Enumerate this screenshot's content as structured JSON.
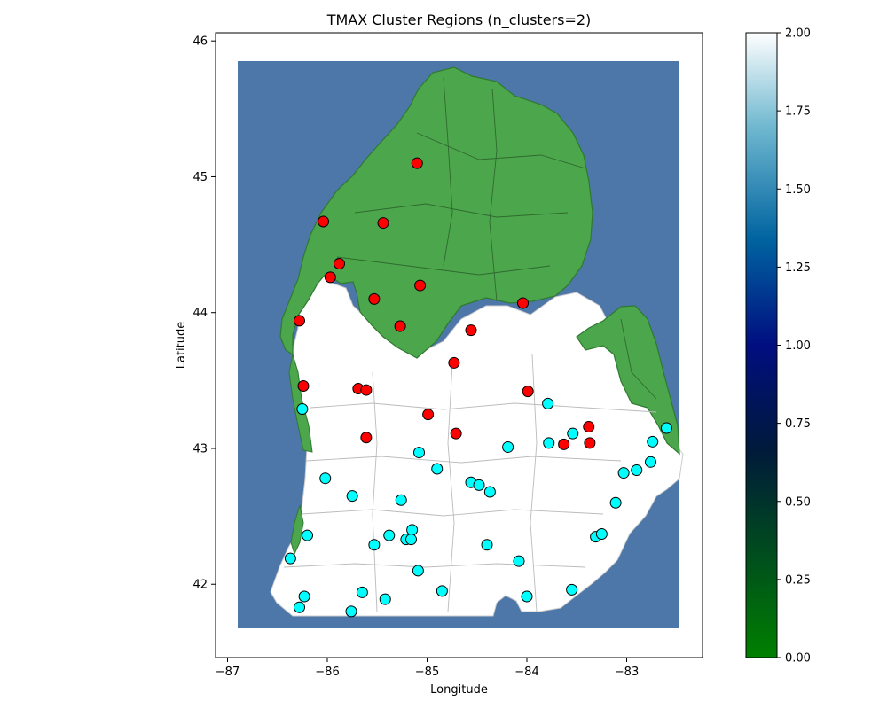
{
  "chart_data": {
    "type": "scatter",
    "title": "TMAX Cluster Regions (n_clusters=2)",
    "xlabel": "Longitude",
    "ylabel": "Latitude",
    "xlim": [
      -87.12,
      -82.24
    ],
    "ylim": [
      41.46,
      46.06
    ],
    "x_ticks": [
      -87,
      -86,
      -85,
      -84,
      -83
    ],
    "x_tick_labels": [
      "−87",
      "−86",
      "−85",
      "−84",
      "−83"
    ],
    "y_ticks": [
      42,
      43,
      44,
      45,
      46
    ],
    "y_tick_labels": [
      "42",
      "43",
      "44",
      "45",
      "46"
    ],
    "grid": false,
    "colors": {
      "water": "#4c77a8",
      "cluster_region_0": "#4ca64c",
      "cluster_region_1": "#ffffff",
      "cluster_0_points": "#ff0000",
      "cluster_1_points": "#00ffff",
      "county_lines": "#bbbbbb"
    },
    "colorbar": {
      "colormap": "ocean",
      "min": 0.0,
      "max": 2.0,
      "ticks": [
        0.0,
        0.25,
        0.5,
        0.75,
        1.0,
        1.25,
        1.5,
        1.75,
        2.0
      ],
      "tick_labels": [
        "0.00",
        "0.25",
        "0.50",
        "0.75",
        "1.00",
        "1.25",
        "1.50",
        "1.75",
        "2.00"
      ]
    },
    "series": [
      {
        "cluster": 0,
        "color": "#ff0000",
        "points": [
          [
            -85.1,
            45.1
          ],
          [
            -86.04,
            44.67
          ],
          [
            -85.44,
            44.66
          ],
          [
            -85.88,
            44.36
          ],
          [
            -85.97,
            44.26
          ],
          [
            -85.07,
            44.2
          ],
          [
            -85.53,
            44.1
          ],
          [
            -86.28,
            43.94
          ],
          [
            -84.04,
            44.07
          ],
          [
            -85.27,
            43.9
          ],
          [
            -84.56,
            43.87
          ],
          [
            -84.73,
            43.63
          ],
          [
            -86.24,
            43.46
          ],
          [
            -85.69,
            43.44
          ],
          [
            -85.61,
            43.43
          ],
          [
            -83.99,
            43.42
          ],
          [
            -84.99,
            43.25
          ],
          [
            -85.61,
            43.08
          ],
          [
            -84.71,
            43.11
          ],
          [
            -83.38,
            43.16
          ],
          [
            -83.63,
            43.03
          ],
          [
            -83.37,
            43.04
          ]
        ]
      },
      {
        "cluster": 1,
        "color": "#00ffff",
        "points": [
          [
            -86.25,
            43.29
          ],
          [
            -83.79,
            43.33
          ],
          [
            -82.6,
            43.15
          ],
          [
            -83.54,
            43.11
          ],
          [
            -82.74,
            43.05
          ],
          [
            -83.78,
            43.04
          ],
          [
            -84.19,
            43.01
          ],
          [
            -85.08,
            42.97
          ],
          [
            -84.9,
            42.85
          ],
          [
            -82.9,
            42.84
          ],
          [
            -82.76,
            42.9
          ],
          [
            -83.03,
            42.82
          ],
          [
            -86.02,
            42.78
          ],
          [
            -84.56,
            42.75
          ],
          [
            -84.48,
            42.73
          ],
          [
            -84.37,
            42.68
          ],
          [
            -85.75,
            42.65
          ],
          [
            -85.26,
            42.62
          ],
          [
            -83.11,
            42.6
          ],
          [
            -85.15,
            42.4
          ],
          [
            -85.38,
            42.36
          ],
          [
            -86.2,
            42.36
          ],
          [
            -83.31,
            42.35
          ],
          [
            -83.25,
            42.37
          ],
          [
            -85.21,
            42.33
          ],
          [
            -85.16,
            42.33
          ],
          [
            -85.53,
            42.29
          ],
          [
            -84.4,
            42.29
          ],
          [
            -86.37,
            42.19
          ],
          [
            -84.08,
            42.17
          ],
          [
            -85.09,
            42.1
          ],
          [
            -85.65,
            41.94
          ],
          [
            -84.85,
            41.95
          ],
          [
            -83.55,
            41.96
          ],
          [
            -86.23,
            41.91
          ],
          [
            -84.0,
            41.91
          ],
          [
            -85.42,
            41.89
          ],
          [
            -86.28,
            41.83
          ],
          [
            -85.76,
            41.8
          ]
        ]
      }
    ]
  }
}
